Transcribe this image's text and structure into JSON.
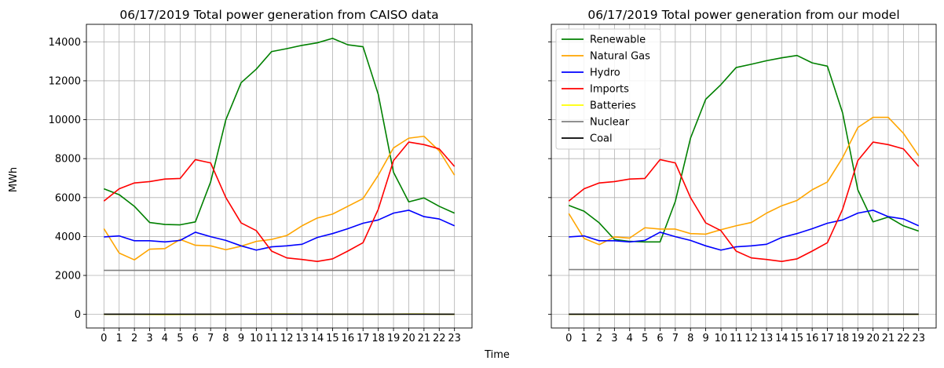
{
  "figure": {
    "ylabel": "MWh",
    "xlabel": "Time"
  },
  "chart_data": [
    {
      "type": "line",
      "title": "06/17/2019 Total power generation from CAISO data",
      "xlabel": "Time",
      "ylabel": "MWh",
      "x": [
        0,
        1,
        2,
        3,
        4,
        5,
        6,
        7,
        8,
        9,
        10,
        11,
        12,
        13,
        14,
        15,
        16,
        17,
        18,
        19,
        20,
        21,
        22,
        23
      ],
      "xlim": [
        -1.15,
        24.15
      ],
      "ylim": [
        -700,
        14900
      ],
      "yticks": [
        0,
        2000,
        4000,
        6000,
        8000,
        10000,
        12000,
        14000
      ],
      "grid": true,
      "legend": null,
      "series": [
        {
          "name": "Renewable",
          "color": "#008000",
          "values": [
            6450,
            6150,
            5550,
            4720,
            4620,
            4600,
            4750,
            6800,
            10000,
            11900,
            12600,
            13500,
            13650,
            13820,
            13950,
            14180,
            13850,
            13750,
            11300,
            7300,
            5780,
            5980,
            5550,
            5200
          ]
        },
        {
          "name": "Natural Gas",
          "color": "#ffa500",
          "values": [
            4400,
            3150,
            2800,
            3350,
            3380,
            3850,
            3550,
            3520,
            3320,
            3500,
            3750,
            3850,
            4050,
            4550,
            4950,
            5150,
            5550,
            5950,
            7150,
            8550,
            9050,
            9150,
            8400,
            7150
          ]
        },
        {
          "name": "Hydro",
          "color": "#0000ff",
          "values": [
            3980,
            4030,
            3780,
            3780,
            3720,
            3800,
            4220,
            3990,
            3800,
            3520,
            3300,
            3470,
            3520,
            3600,
            3950,
            4150,
            4400,
            4680,
            4850,
            5200,
            5350,
            5020,
            4900,
            4550
          ]
        },
        {
          "name": "Imports",
          "color": "#ff0000",
          "values": [
            5820,
            6450,
            6750,
            6820,
            6950,
            6980,
            7950,
            7780,
            6000,
            4700,
            4300,
            3250,
            2900,
            2820,
            2720,
            2850,
            3250,
            3680,
            5400,
            7900,
            8850,
            8720,
            8500,
            7600
          ]
        },
        {
          "name": "Batteries",
          "color": "#ffff00",
          "values": [
            0,
            0,
            0,
            -10,
            -15,
            -10,
            -5,
            0,
            10,
            15,
            20,
            20,
            20,
            15,
            15,
            10,
            10,
            0,
            0,
            10,
            20,
            20,
            10,
            0
          ]
        },
        {
          "name": "Nuclear",
          "color": "#808080",
          "values": [
            2260,
            2260,
            2260,
            2260,
            2260,
            2260,
            2260,
            2260,
            2260,
            2260,
            2260,
            2260,
            2260,
            2260,
            2260,
            2260,
            2260,
            2260,
            2260,
            2260,
            2260,
            2260,
            2260,
            2260
          ]
        },
        {
          "name": "Coal",
          "color": "#000000",
          "values": [
            10,
            10,
            10,
            10,
            10,
            10,
            10,
            10,
            10,
            10,
            10,
            10,
            10,
            10,
            10,
            10,
            10,
            10,
            10,
            10,
            10,
            10,
            10,
            10
          ]
        }
      ]
    },
    {
      "type": "line",
      "title": "06/17/2019 Total power generation from our model",
      "xlabel": "Time",
      "ylabel": "MWh",
      "x": [
        0,
        1,
        2,
        3,
        4,
        5,
        6,
        7,
        8,
        9,
        10,
        11,
        12,
        13,
        14,
        15,
        16,
        17,
        18,
        19,
        20,
        21,
        22,
        23
      ],
      "xlim": [
        -1.15,
        24.15
      ],
      "ylim": [
        -700,
        14900
      ],
      "yticks": [
        0,
        2000,
        4000,
        6000,
        8000,
        10000,
        12000,
        14000
      ],
      "grid": true,
      "legend": "top-left",
      "series": [
        {
          "name": "Renewable",
          "color": "#008000",
          "values": [
            5600,
            5300,
            4700,
            3850,
            3750,
            3720,
            3720,
            5800,
            9050,
            11050,
            11800,
            12680,
            12850,
            13030,
            13180,
            13300,
            12920,
            12750,
            10350,
            6400,
            4750,
            5000,
            4550,
            4280
          ]
        },
        {
          "name": "Natural Gas",
          "color": "#ffa500",
          "values": [
            5180,
            3900,
            3580,
            3980,
            3920,
            4450,
            4380,
            4380,
            4150,
            4120,
            4350,
            4550,
            4720,
            5200,
            5580,
            5850,
            6400,
            6800,
            8050,
            9600,
            10120,
            10120,
            9300,
            8150
          ]
        },
        {
          "name": "Hydro",
          "color": "#0000ff",
          "values": [
            3980,
            4030,
            3780,
            3780,
            3720,
            3800,
            4220,
            3990,
            3800,
            3520,
            3300,
            3470,
            3520,
            3600,
            3950,
            4150,
            4400,
            4680,
            4850,
            5200,
            5350,
            5020,
            4900,
            4550
          ]
        },
        {
          "name": "Imports",
          "color": "#ff0000",
          "values": [
            5820,
            6450,
            6750,
            6820,
            6950,
            6980,
            7950,
            7780,
            6000,
            4700,
            4300,
            3250,
            2900,
            2820,
            2720,
            2850,
            3250,
            3680,
            5400,
            7900,
            8850,
            8720,
            8500,
            7600
          ]
        },
        {
          "name": "Batteries",
          "color": "#ffff00",
          "values": [
            0,
            0,
            0,
            0,
            0,
            0,
            0,
            0,
            0,
            0,
            0,
            0,
            0,
            0,
            0,
            0,
            0,
            0,
            0,
            0,
            0,
            0,
            0,
            0
          ]
        },
        {
          "name": "Nuclear",
          "color": "#808080",
          "values": [
            2300,
            2300,
            2300,
            2300,
            2300,
            2300,
            2300,
            2300,
            2300,
            2300,
            2300,
            2300,
            2300,
            2300,
            2300,
            2300,
            2300,
            2300,
            2300,
            2300,
            2300,
            2300,
            2300,
            2300
          ]
        },
        {
          "name": "Coal",
          "color": "#000000",
          "values": [
            10,
            10,
            10,
            10,
            10,
            10,
            10,
            10,
            10,
            10,
            10,
            10,
            10,
            10,
            10,
            10,
            10,
            10,
            10,
            10,
            10,
            10,
            10,
            10
          ]
        }
      ]
    }
  ]
}
